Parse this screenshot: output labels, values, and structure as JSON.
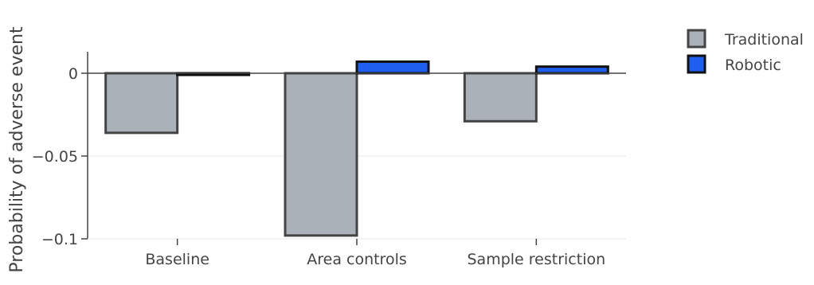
{
  "chart_data": {
    "type": "bar",
    "categories": [
      "Baseline",
      "Area controls",
      "Sample restriction"
    ],
    "series": [
      {
        "name": "Traditional",
        "values": [
          -0.036,
          -0.098,
          -0.029
        ],
        "fill": "#aab1b9",
        "stroke": "#444444"
      },
      {
        "name": "Robotic",
        "values": [
          -0.001,
          0.007,
          0.004
        ],
        "fill": "#1f5ff0",
        "stroke": "#111111"
      }
    ],
    "ylabel": "Probability of adverse event",
    "ylim": [
      -0.1,
      0.013
    ],
    "yticks": [
      {
        "value": 0,
        "label": "0"
      },
      {
        "value": -0.05,
        "label": "−0.05"
      },
      {
        "value": -0.1,
        "label": "−0.1"
      }
    ],
    "grid": true,
    "legend_position": "top-right"
  }
}
